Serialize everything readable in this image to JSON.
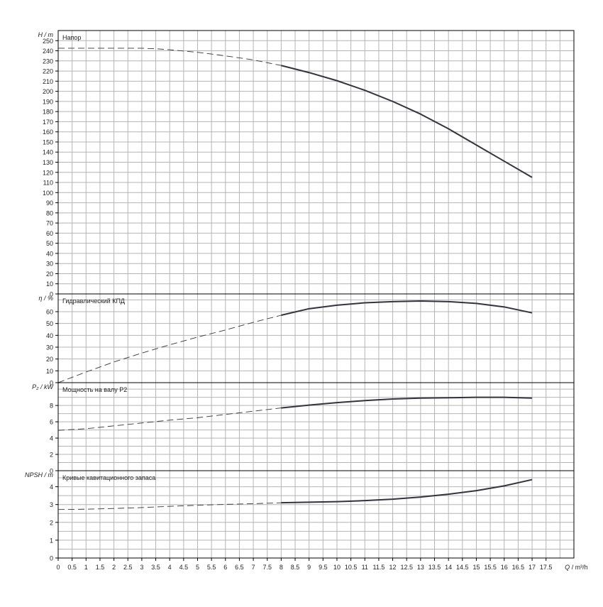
{
  "chart_data": [
    {
      "type": "line",
      "title": "Напор",
      "ylabel": "H / m",
      "xlabel": "Q / m³/h",
      "xlim": [
        0,
        18.5
      ],
      "ylim": [
        0,
        260
      ],
      "ytick_step": 10,
      "yticks": [
        "0",
        "10",
        "20",
        "30",
        "40",
        "50",
        "60",
        "70",
        "80",
        "90",
        "100",
        "110",
        "120",
        "130",
        "140",
        "150",
        "160",
        "170",
        "180",
        "190",
        "200",
        "210",
        "220",
        "230",
        "240",
        "250"
      ],
      "grid": true,
      "series": [
        {
          "x": [
            0,
            1,
            2,
            3,
            3.5,
            4,
            5,
            6,
            7,
            8,
            9,
            10,
            11,
            12,
            13,
            14,
            15,
            16,
            17
          ],
          "values": [
            242.5,
            242.5,
            242.5,
            242.5,
            242,
            241,
            238.5,
            235,
            231,
            225.5,
            218.5,
            210.5,
            201,
            190,
            177.5,
            163,
            147,
            131,
            115
          ],
          "dashed_until_x": 8
        }
      ]
    },
    {
      "type": "line",
      "title": "Гидравлический КПД",
      "ylabel": "η / %",
      "xlim": [
        0,
        18.5
      ],
      "ylim": [
        0,
        75
      ],
      "ytick_step": 10,
      "yticks": [
        "0",
        "10",
        "20",
        "30",
        "40",
        "50",
        "60"
      ],
      "grid": true,
      "series": [
        {
          "x": [
            0,
            1,
            2,
            3,
            4,
            5,
            6,
            7,
            8,
            9,
            10,
            11,
            12,
            13,
            14,
            15,
            16,
            17
          ],
          "values": [
            0,
            9,
            17.5,
            25,
            32,
            38.5,
            44.5,
            51,
            57,
            62.5,
            65.5,
            67.5,
            68.5,
            69,
            68.5,
            67,
            64,
            59
          ],
          "dashed_until_x": 8
        }
      ]
    },
    {
      "type": "line",
      "title": "Мощность на валу P2",
      "ylabel": "P₂ / kW",
      "xlim": [
        0,
        18.5
      ],
      "ylim": [
        0,
        10.8
      ],
      "ytick_step": 1,
      "yticks": [
        "0",
        "2",
        "4",
        "6",
        "8"
      ],
      "grid": true,
      "series": [
        {
          "x": [
            0,
            1,
            2,
            3,
            4,
            5,
            6,
            7,
            8,
            9,
            10,
            11,
            12,
            13,
            14,
            15,
            16,
            17
          ],
          "values": [
            4.95,
            5.15,
            5.5,
            5.85,
            6.2,
            6.5,
            6.9,
            7.3,
            7.7,
            8.05,
            8.35,
            8.6,
            8.8,
            8.9,
            8.95,
            9.0,
            9.0,
            8.9
          ],
          "dashed_until_x": 8
        }
      ]
    },
    {
      "type": "line",
      "title": "Кривые кавитационного запаса",
      "ylabel": "NPSH / m",
      "xlim": [
        0,
        18.5
      ],
      "ylim": [
        0,
        4.9
      ],
      "ytick_step": 0.5,
      "yticks": [
        "0",
        "1",
        "2",
        "3",
        "4"
      ],
      "grid": true,
      "series": [
        {
          "x": [
            0,
            1,
            2,
            3,
            4,
            5,
            6,
            7,
            8,
            9,
            10,
            11,
            12,
            13,
            14,
            15,
            16,
            17
          ],
          "values": [
            2.72,
            2.74,
            2.78,
            2.83,
            2.9,
            2.96,
            3.01,
            3.05,
            3.1,
            3.13,
            3.16,
            3.22,
            3.3,
            3.42,
            3.58,
            3.78,
            4.05,
            4.4
          ],
          "dashed_until_x": 8
        }
      ]
    }
  ],
  "x_axis": {
    "label_q": "Q",
    "label_unit": " / m³/h",
    "ticks": [
      "0",
      "0.5",
      "1",
      "1.5",
      "2",
      "2.5",
      "3",
      "3.5",
      "4",
      "4.5",
      "5",
      "5.5",
      "6",
      "6.5",
      "7",
      "7.5",
      "8",
      "8.5",
      "9",
      "9.5",
      "10",
      "10.5",
      "11",
      "11.5",
      "12",
      "12.5",
      "13",
      "13.5",
      "14",
      "14.5",
      "15",
      "15.5",
      "16",
      "16.5",
      "17",
      "17.5"
    ]
  },
  "colors": {
    "grid": "#b4b4b4",
    "axis": "#000000",
    "curve": "#33333c"
  }
}
